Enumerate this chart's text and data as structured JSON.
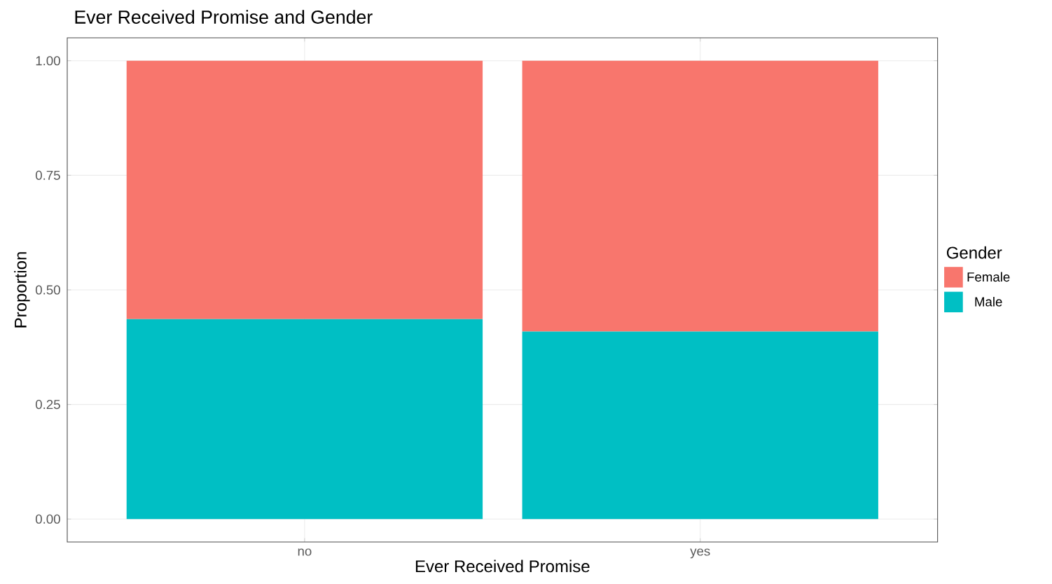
{
  "chart_data": {
    "type": "bar",
    "stacked": true,
    "title": "Ever Received Promise and Gender",
    "xlabel": "Ever Received Promise",
    "ylabel": "Proportion",
    "legend_title": "Gender",
    "categories": [
      "no",
      "yes"
    ],
    "series": [
      {
        "name": "Male",
        "color": "#00BFC4",
        "values": [
          0.436,
          0.409
        ]
      },
      {
        "name": "Female",
        "color": "#F8766D",
        "values": [
          0.564,
          0.591
        ]
      }
    ],
    "ylim": [
      -0.05,
      1.05
    ],
    "yticks": [
      {
        "value": 0,
        "label": "0.00"
      },
      {
        "value": 0.25,
        "label": "0.25"
      },
      {
        "value": 0.5,
        "label": "0.50"
      },
      {
        "value": 0.75,
        "label": "0.75"
      },
      {
        "value": 1,
        "label": "1.00"
      }
    ],
    "grid": true,
    "legend": "right"
  }
}
